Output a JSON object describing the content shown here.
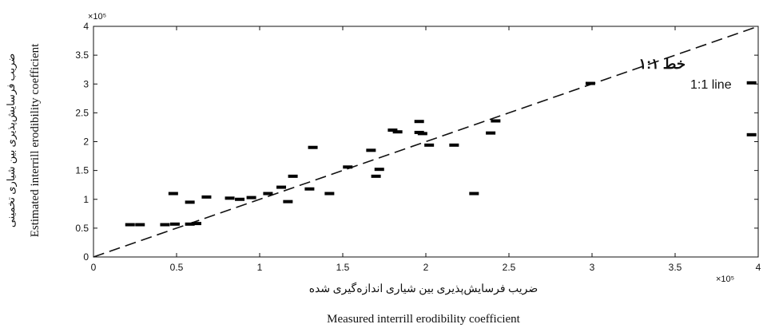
{
  "chart_data": {
    "type": "scatter",
    "xlabel_fa": "ضریب فرسایش‌پذیری بین شیاری اندازه‌گیری شده",
    "xlabel_en": "Measured interrill erodibility coefficient",
    "ylabel_fa": "ضریب فرسایش‌پذیری بین شیاری تخمینی",
    "ylabel_en": "Estimated interrill erodibility coefficient",
    "x_exponent_label": "×10⁵",
    "y_exponent_label": "×10⁵",
    "xlim": [
      0,
      4
    ],
    "ylim": [
      0,
      4
    ],
    "xticks": [
      0,
      0.5,
      1,
      1.5,
      2,
      2.5,
      3,
      3.5,
      4
    ],
    "xtick_labels": [
      "0",
      "0.5",
      "1",
      "1.5",
      "2",
      "2.5",
      "3",
      "3.5",
      "4"
    ],
    "yticks": [
      0,
      0.5,
      1,
      1.5,
      2,
      2.5,
      3,
      3.5,
      4
    ],
    "ytick_labels": [
      "0",
      "0.5",
      "1",
      "1.5",
      "2",
      "2.5",
      "3",
      "3.5",
      "4"
    ],
    "grid": false,
    "legend_title": "خط ۱:۱",
    "legend_label": "1:1 line",
    "reference_line": {
      "x": [
        0,
        4
      ],
      "y": [
        0,
        4
      ],
      "style": "dashed"
    },
    "points": [
      {
        "x": 0.22,
        "y": 0.56
      },
      {
        "x": 0.28,
        "y": 0.56
      },
      {
        "x": 0.43,
        "y": 0.56
      },
      {
        "x": 0.49,
        "y": 0.57
      },
      {
        "x": 0.48,
        "y": 1.1
      },
      {
        "x": 0.58,
        "y": 0.95
      },
      {
        "x": 0.58,
        "y": 0.57
      },
      {
        "x": 0.62,
        "y": 0.58
      },
      {
        "x": 0.68,
        "y": 1.04
      },
      {
        "x": 0.82,
        "y": 1.02
      },
      {
        "x": 0.88,
        "y": 1.0
      },
      {
        "x": 0.95,
        "y": 1.03
      },
      {
        "x": 1.05,
        "y": 1.1
      },
      {
        "x": 1.13,
        "y": 1.21
      },
      {
        "x": 1.17,
        "y": 0.96
      },
      {
        "x": 1.2,
        "y": 1.4
      },
      {
        "x": 1.3,
        "y": 1.18
      },
      {
        "x": 1.32,
        "y": 1.9
      },
      {
        "x": 1.42,
        "y": 1.1
      },
      {
        "x": 1.53,
        "y": 1.56
      },
      {
        "x": 1.67,
        "y": 1.85
      },
      {
        "x": 1.7,
        "y": 1.4
      },
      {
        "x": 1.72,
        "y": 1.52
      },
      {
        "x": 1.8,
        "y": 2.2
      },
      {
        "x": 1.83,
        "y": 2.17
      },
      {
        "x": 1.96,
        "y": 2.35
      },
      {
        "x": 1.96,
        "y": 2.16
      },
      {
        "x": 1.98,
        "y": 2.14
      },
      {
        "x": 2.02,
        "y": 1.94
      },
      {
        "x": 2.17,
        "y": 1.94
      },
      {
        "x": 2.29,
        "y": 1.1
      },
      {
        "x": 2.39,
        "y": 2.15
      },
      {
        "x": 2.42,
        "y": 2.36
      },
      {
        "x": 2.99,
        "y": 3.01
      },
      {
        "x": 3.96,
        "y": 3.02
      },
      {
        "x": 3.96,
        "y": 2.12
      }
    ]
  }
}
